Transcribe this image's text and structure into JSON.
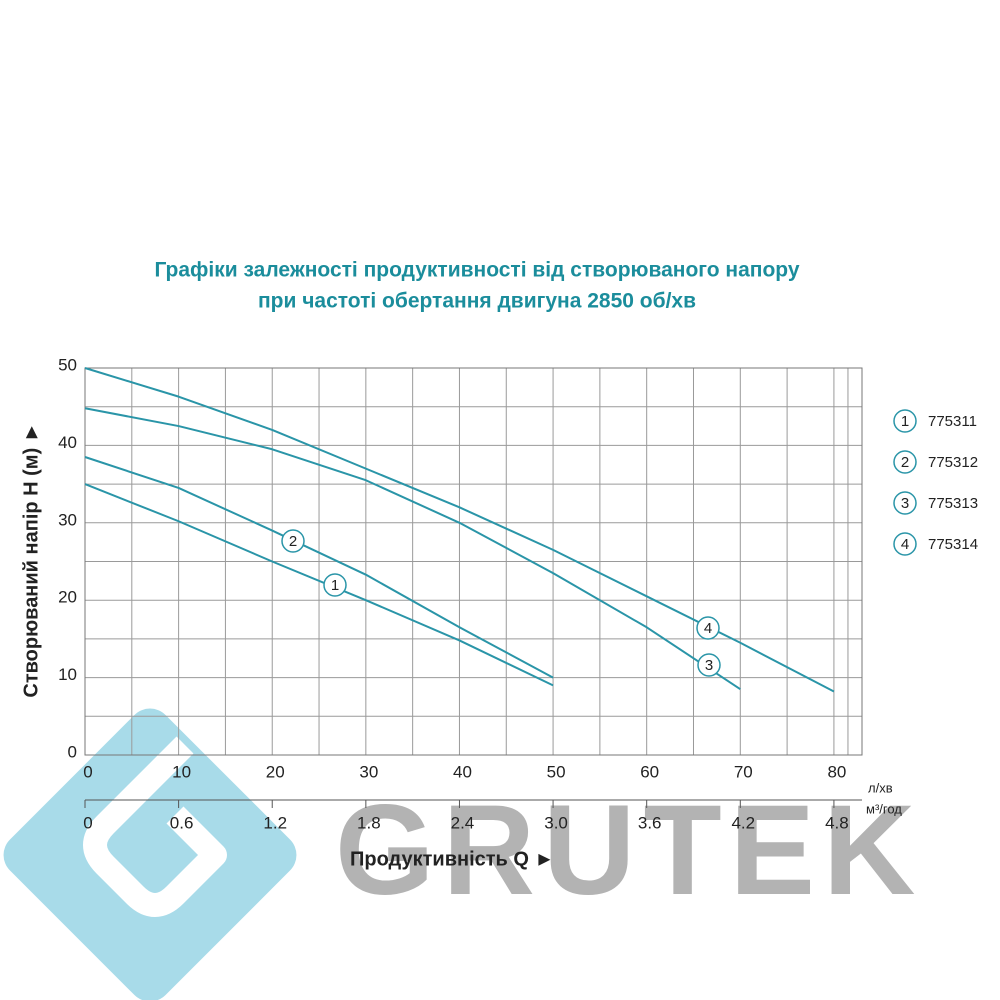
{
  "chart_data": {
    "type": "line",
    "title": [
      "Графіки залежності продуктивності від створюваного напору",
      "при частоті обертання двигуна 2850 об/хв"
    ],
    "y_label": "Створюваний напір H (м) ►",
    "x_label": "Продуктивність  Q ►",
    "x_unit": "л/хв",
    "x2_unit": "м³/год",
    "watermark": "GRUTEK",
    "x": [
      0,
      10,
      20,
      30,
      40,
      50,
      60,
      70,
      80
    ],
    "xlim": [
      0,
      83
    ],
    "xticks": [
      0,
      10,
      20,
      30,
      40,
      50,
      60,
      70,
      80
    ],
    "x2lim": [
      0,
      4.98
    ],
    "x2ticks": [
      0,
      0.6,
      1.2,
      1.8,
      2.4,
      {
        "value": 3,
        "label": "3.0"
      },
      3.6,
      4.2,
      4.8
    ],
    "ylim": [
      0,
      50
    ],
    "yticks": [
      0,
      10,
      20,
      30,
      40,
      50
    ],
    "grid": true,
    "series": [
      {
        "name": "775311",
        "marker": "1",
        "color": "#2a95a8",
        "values": [
          35,
          30.2,
          25,
          20,
          14.8,
          9,
          null,
          null,
          null
        ]
      },
      {
        "name": "775312",
        "marker": "2",
        "color": "#2a95a8",
        "values": [
          38.5,
          34.5,
          29,
          23.3,
          16.5,
          10,
          null,
          null,
          null
        ]
      },
      {
        "name": "775313",
        "marker": "3",
        "color": "#2a95a8",
        "values": [
          44.8,
          42.5,
          39.5,
          35.5,
          30,
          23.5,
          16.5,
          8.5,
          null
        ]
      },
      {
        "name": "775314",
        "marker": "4",
        "color": "#2a95a8",
        "values": [
          50,
          46.3,
          42,
          37,
          32,
          26.5,
          20.5,
          14.5,
          8.2
        ]
      }
    ]
  }
}
